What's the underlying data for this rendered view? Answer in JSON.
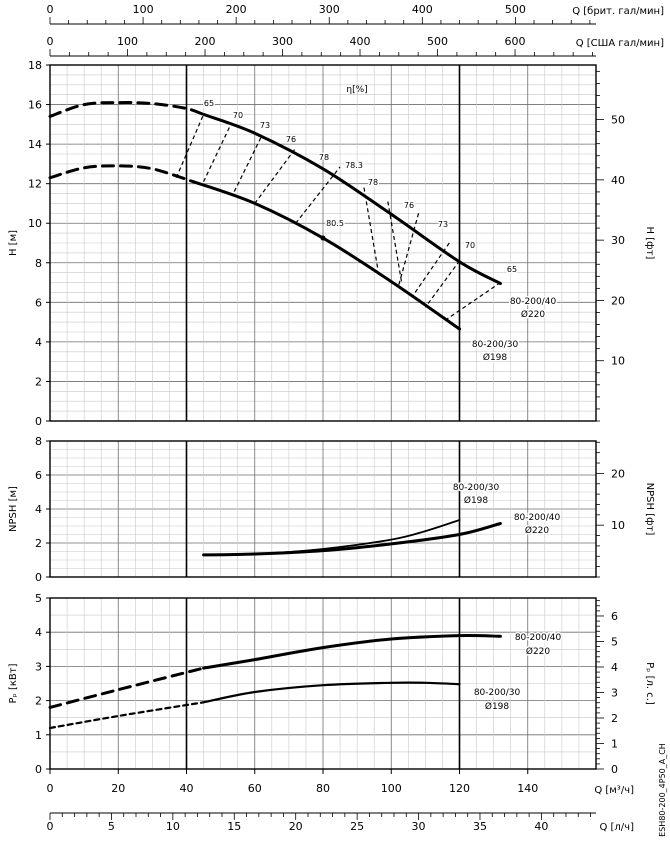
{
  "footer_code": "ESH80-200_4P50_A_CH",
  "chart_data": [
    {
      "type": "line",
      "title": "",
      "xlabel": "Q [м³/ч]",
      "ylabel": "H [м]",
      "ylabel_right": "H [фт]",
      "xlim": [
        0,
        160
      ],
      "ylim": [
        0,
        18
      ],
      "y_right_range": [
        0,
        59.05
      ],
      "top_axes": [
        {
          "label": "Q [брит. гал/мин]",
          "ticks": [
            0,
            100,
            200,
            300,
            400,
            500
          ],
          "per_m3h": 3.6662
        },
        {
          "label": "Q [США гал/мин]",
          "ticks": [
            0,
            100,
            200,
            300,
            400,
            500,
            600
          ],
          "per_m3h": 4.4029
        }
      ],
      "x_ticks": [
        0,
        20,
        40,
        60,
        80,
        100,
        120,
        140
      ],
      "y_ticks": [
        0,
        2,
        4,
        6,
        8,
        10,
        12,
        14,
        16,
        18
      ],
      "y_right_ticks": [
        10,
        20,
        30,
        40,
        50
      ],
      "grid": true,
      "efficiency_label": "η[%]",
      "series": [
        {
          "name": "80-200/40",
          "name2": "Ø220",
          "role": "solid",
          "x": [
            45,
            60,
            80,
            100,
            120,
            132
          ],
          "y": [
            15.5,
            14.55,
            12.75,
            10.45,
            8.05,
            6.95
          ]
        },
        {
          "name": "80-200/40",
          "role": "dashed",
          "x": [
            0,
            10,
            20,
            30,
            40,
            45
          ],
          "y": [
            15.4,
            16.0,
            16.1,
            16.05,
            15.8,
            15.5
          ]
        },
        {
          "name": "80-200/30",
          "name2": "Ø198",
          "role": "solid",
          "x": [
            42,
            60,
            80,
            100,
            120
          ],
          "y": [
            12.1,
            11.0,
            9.25,
            7.05,
            4.65
          ]
        },
        {
          "name": "80-200/30",
          "role": "dashed",
          "x": [
            0,
            10,
            20,
            30,
            42
          ],
          "y": [
            12.3,
            12.8,
            12.9,
            12.75,
            12.1
          ]
        }
      ],
      "iso_efficiency_lines": [
        {
          "label": "65",
          "x": [
            37,
            45
          ],
          "y": [
            12.3,
            15.5
          ]
        },
        {
          "label": "70",
          "x": [
            45,
            53
          ],
          "y": [
            12.1,
            15.0
          ]
        },
        {
          "label": "73",
          "x": [
            54,
            62
          ],
          "y": [
            11.6,
            14.4
          ]
        },
        {
          "label": "76",
          "x": [
            60,
            72
          ],
          "y": [
            11.0,
            13.8
          ]
        },
        {
          "label": "78",
          "x": [
            72,
            85
          ],
          "y": [
            10.0,
            12.85
          ]
        },
        {
          "label": "78.3",
          "x": [
            92,
            96
          ],
          "y": [
            11.8,
            7.75
          ]
        },
        {
          "label": "78",
          "x": [
            99,
            103
          ],
          "y": [
            11.1,
            7.05
          ]
        },
        {
          "label": "76",
          "x": [
            108,
            102
          ],
          "y": [
            10.5,
            6.75
          ]
        },
        {
          "label": "73",
          "x": [
            117,
            106
          ],
          "y": [
            9.0,
            6.25
          ]
        },
        {
          "label": "70",
          "x": [
            120,
            110
          ],
          "y": [
            8.1,
            5.75
          ]
        },
        {
          "label": "65",
          "x": [
            132,
            115
          ],
          "y": [
            7.0,
            5.0
          ]
        }
      ],
      "point_labels": [
        {
          "label": "80.5",
          "x": 80,
          "y": 9.25
        }
      ]
    },
    {
      "type": "line",
      "xlabel": "",
      "ylabel": "NPSH [м]",
      "ylabel_right": "NPSH [фт]",
      "xlim": [
        0,
        160
      ],
      "ylim": [
        0,
        8
      ],
      "y_right_range": [
        0,
        26.25
      ],
      "y_ticks": [
        0,
        2,
        4,
        6,
        8
      ],
      "y_right_ticks": [
        10,
        20
      ],
      "series": [
        {
          "name": "80-200/40",
          "name2": "Ø220",
          "x": [
            45,
            60,
            80,
            100,
            120,
            132
          ],
          "y": [
            1.3,
            1.35,
            1.55,
            1.95,
            2.5,
            3.15
          ]
        },
        {
          "name": "80-200/30",
          "name2": "Ø198",
          "x": [
            45,
            60,
            80,
            100,
            110,
            120
          ],
          "y": [
            1.3,
            1.35,
            1.65,
            2.2,
            2.7,
            3.35
          ]
        }
      ]
    },
    {
      "type": "line",
      "xlabel": "Q [м³/ч]",
      "xlabel2": "Q [л/ч]",
      "ylabel": "Pₚ [кВт]",
      "ylabel_right": "Pₚ [л. с.]",
      "xlim": [
        0,
        160
      ],
      "ylim": [
        0,
        5
      ],
      "y_right_range": [
        0,
        6.705
      ],
      "y_ticks": [
        0,
        1,
        2,
        3,
        4,
        5
      ],
      "y_right_ticks": [
        0,
        1,
        2,
        3,
        4,
        5,
        6
      ],
      "x_ticks": [
        0,
        20,
        40,
        60,
        80,
        100,
        120,
        140
      ],
      "x2_ticks": [
        0,
        5,
        10,
        15,
        20,
        25,
        30,
        35,
        40
      ],
      "series": [
        {
          "name": "80-200/40",
          "name2": "Ø220",
          "role": "solid",
          "x": [
            45,
            60,
            80,
            100,
            120,
            132
          ],
          "y": [
            2.95,
            3.2,
            3.55,
            3.8,
            3.9,
            3.88
          ]
        },
        {
          "name": "80-200/40",
          "role": "dashed",
          "x": [
            0,
            20,
            45
          ],
          "y": [
            1.8,
            2.32,
            2.95
          ]
        },
        {
          "name": "80-200/30",
          "name2": "Ø198",
          "role": "solid",
          "x": [
            45,
            60,
            80,
            100,
            110,
            120
          ],
          "y": [
            1.95,
            2.25,
            2.45,
            2.52,
            2.52,
            2.48
          ]
        },
        {
          "name": "80-200/30",
          "role": "dashed",
          "x": [
            0,
            20,
            45
          ],
          "y": [
            1.2,
            1.55,
            1.95
          ]
        }
      ]
    }
  ]
}
